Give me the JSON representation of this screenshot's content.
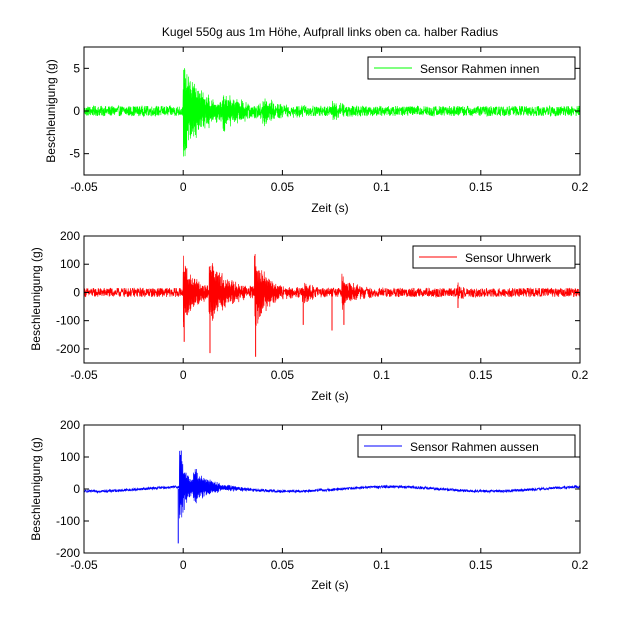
{
  "figure_title": "Kugel 550g aus 1m Höhe, Aufprall links oben ca. halber Radius",
  "chart_data": [
    {
      "type": "line",
      "xlabel": "Zeit (s)",
      "ylabel": "Beschleunigung (g)",
      "xlim": [
        -0.05,
        0.2
      ],
      "ylim": [
        -7.5,
        7.5
      ],
      "xticks": [
        -0.05,
        0,
        0.05,
        0.1,
        0.15,
        0.2
      ],
      "xtick_labels": [
        "-0.05",
        "0",
        "0.05",
        "0.1",
        "0.15",
        "0.2"
      ],
      "yticks": [
        -5,
        0,
        5
      ],
      "ytick_labels": [
        "-5",
        "0",
        "5"
      ],
      "grid": false,
      "legend_position": "top-right",
      "series": [
        {
          "name": "Sensor Rahmen innen",
          "color": "#00ff00",
          "noise_level": 0.6,
          "events": [
            {
              "t": 0.0,
              "amplitude": 5.5,
              "decay": 0.01
            },
            {
              "t": 0.02,
              "amplitude": 1.5,
              "decay": 0.01
            },
            {
              "t": 0.04,
              "amplitude": 1.2,
              "decay": 0.008
            },
            {
              "t": 0.075,
              "amplitude": 0.9,
              "decay": 0.006
            }
          ]
        }
      ]
    },
    {
      "type": "line",
      "xlabel": "Zeit (s)",
      "ylabel": "Beschleunigung (g)",
      "xlim": [
        -0.05,
        0.2
      ],
      "ylim": [
        -250,
        200
      ],
      "xticks": [
        -0.05,
        0,
        0.05,
        0.1,
        0.15,
        0.2
      ],
      "xtick_labels": [
        "-0.05",
        "0",
        "0.05",
        "0.1",
        "0.15",
        "0.2"
      ],
      "yticks": [
        -200,
        -100,
        0,
        100,
        200
      ],
      "ytick_labels": [
        "-200",
        "-100",
        "0",
        "100",
        "200"
      ],
      "grid": false,
      "legend_position": "top-right",
      "series": [
        {
          "name": "Sensor Uhrwerk",
          "color": "#ff0000",
          "noise_level": 16,
          "events": [
            {
              "t": 0.0,
              "amplitude": 120,
              "decay": 0.006
            },
            {
              "t": 0.013,
              "amplitude": 100,
              "decay": 0.01
            },
            {
              "t": 0.036,
              "amplitude": 130,
              "decay": 0.006
            },
            {
              "t": 0.06,
              "amplitude": 40,
              "decay": 0.004
            },
            {
              "t": 0.08,
              "amplitude": 60,
              "decay": 0.006
            },
            {
              "t": 0.138,
              "amplitude": 30,
              "decay": 0.003
            }
          ],
          "spikes": [
            {
              "t": 0.0005,
              "value": -175
            },
            {
              "t": 0.0135,
              "value": -215
            },
            {
              "t": 0.0365,
              "value": -228
            },
            {
              "t": 0.036,
              "value": 130
            },
            {
              "t": 0.0605,
              "value": -115
            },
            {
              "t": 0.075,
              "value": -135
            },
            {
              "t": 0.081,
              "value": -115
            },
            {
              "t": 0.1385,
              "value": -55
            }
          ]
        }
      ]
    },
    {
      "type": "line",
      "xlabel": "Zeit (s)",
      "ylabel": "Beschleunigung (g)",
      "xlim": [
        -0.05,
        0.2
      ],
      "ylim": [
        -200,
        200
      ],
      "xticks": [
        -0.05,
        0,
        0.05,
        0.1,
        0.15,
        0.2
      ],
      "xtick_labels": [
        "-0.05",
        "0",
        "0.05",
        "0.1",
        "0.15",
        "0.2"
      ],
      "yticks": [
        -200,
        -100,
        0,
        100,
        200
      ],
      "ytick_labels": [
        "-200",
        "-100",
        "0",
        "100",
        "200"
      ],
      "grid": false,
      "legend_position": "top-right",
      "series": [
        {
          "name": "Sensor Rahmen aussen",
          "color": "#0000ff",
          "noise_level": 4,
          "baseline_wave": {
            "amplitude": 7,
            "period": 0.1
          },
          "events": [
            {
              "t": -0.002,
              "amplitude": 130,
              "decay": 0.004
            },
            {
              "t": 0.005,
              "amplitude": 45,
              "decay": 0.01
            }
          ],
          "spikes": [
            {
              "t": -0.0025,
              "value": -170
            },
            {
              "t": -0.001,
              "value": 120
            }
          ]
        }
      ]
    }
  ]
}
